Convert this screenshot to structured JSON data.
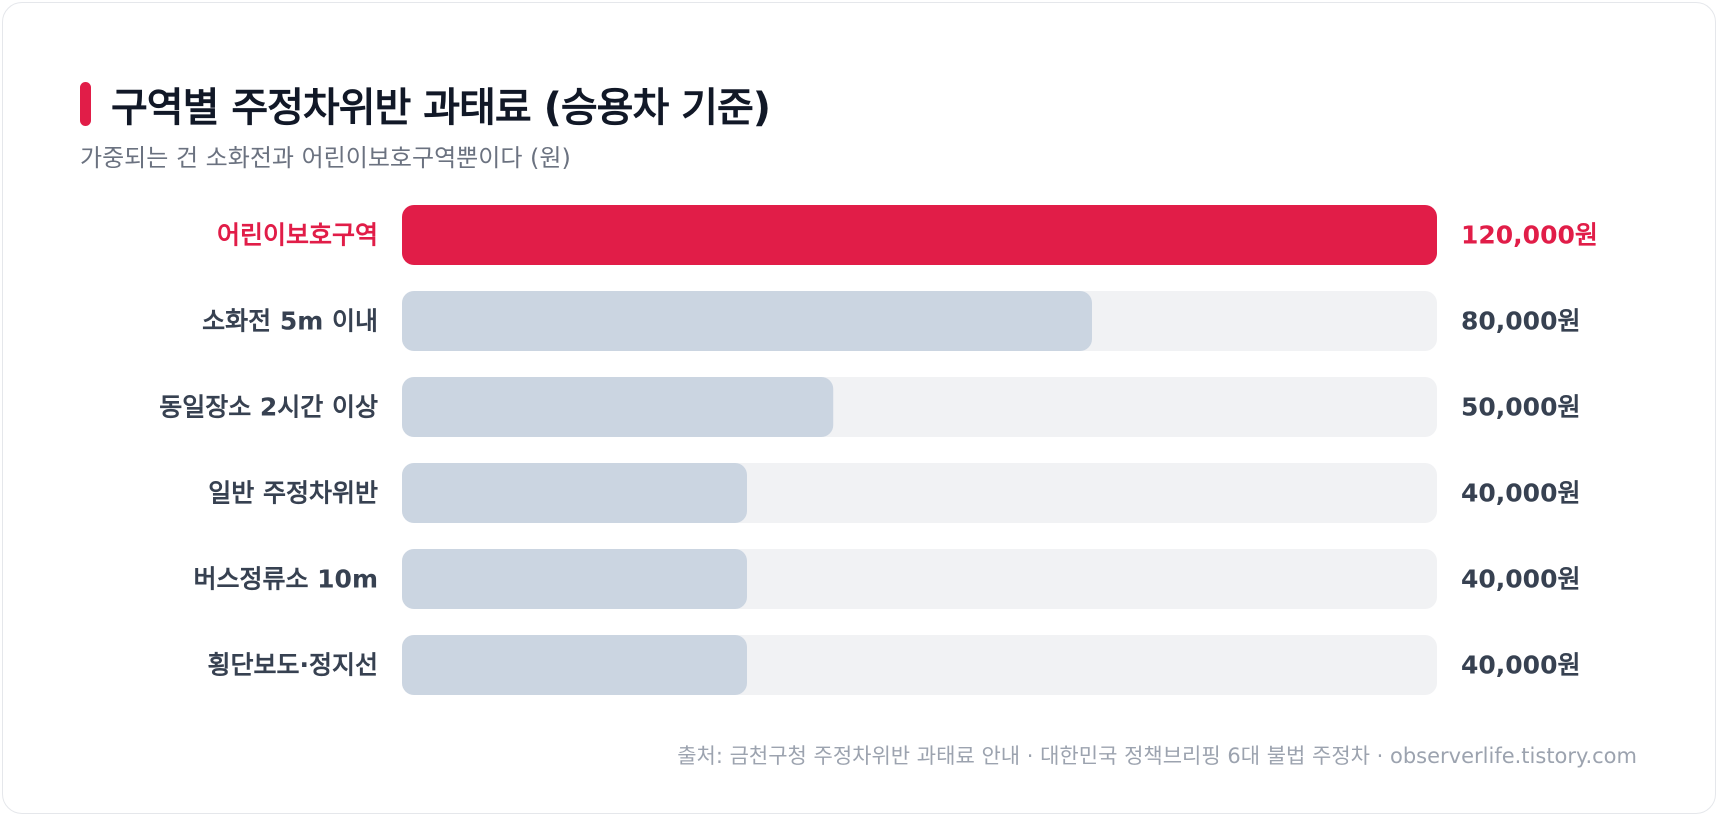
{
  "colors": {
    "highlight": "#E11D48",
    "bar_default": "#CBD5E1",
    "track": "#F1F2F4",
    "label_default": "#374151",
    "value_default": "#374151"
  },
  "header": {
    "title": "구역별 주정차위반 과태료 (승용차 기준)",
    "subtitle": "가중되는 건 소화전과 어린이보호구역뿐이다 (원)"
  },
  "chart_data": {
    "type": "bar",
    "orientation": "horizontal",
    "categories": [
      "어린이보호구역",
      "소화전 5m 이내",
      "동일장소 2시간 이상",
      "일반 주정차위반",
      "버스정류소 10m",
      "횡단보도·정지선"
    ],
    "values": [
      120000,
      80000,
      50000,
      40000,
      40000,
      40000
    ],
    "value_labels": [
      "120,000원",
      "80,000원",
      "50,000원",
      "40,000원",
      "40,000원",
      "40,000원"
    ],
    "highlight": [
      true,
      false,
      false,
      false,
      false,
      false
    ],
    "xlim": [
      0,
      120000
    ],
    "title": "구역별 주정차위반 과태료 (승용차 기준)",
    "subtitle": "가중되는 건 소화전과 어린이보호구역뿐이다 (원)",
    "grid": false,
    "legend": "none"
  },
  "footer": {
    "source": "출처: 금천구청 주정차위반 과태료 안내 · 대한민국 정책브리핑 6대 불법 주정차 · observerlife.tistory.com"
  }
}
